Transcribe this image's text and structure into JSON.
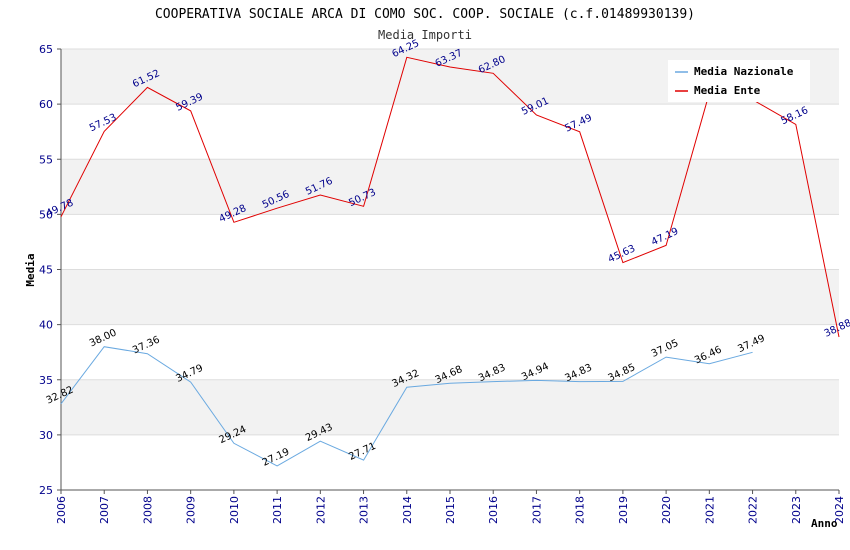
{
  "chart_data": {
    "type": "line",
    "title": "COOPERATIVA SOCIALE ARCA DI COMO SOC. COOP. SOCIALE (c.f.01489930139)",
    "subtitle": "Media Importi",
    "xlabel": "Anno",
    "ylabel": "Media",
    "ylim": [
      25,
      65
    ],
    "yticks": [
      25,
      30,
      35,
      40,
      45,
      50,
      55,
      60,
      65
    ],
    "grid": true,
    "legend_position": "top-right",
    "x": [
      "2006",
      "2007",
      "2008",
      "2009",
      "2010",
      "2011",
      "2012",
      "2013",
      "2014",
      "2015",
      "2016",
      "2017",
      "2018",
      "2019",
      "2020",
      "2021",
      "2022",
      "2023",
      "2024"
    ],
    "series": [
      {
        "name": "Media Nazionale",
        "color": "#6aa9e0",
        "values": [
          32.82,
          38.0,
          37.36,
          34.79,
          29.24,
          27.19,
          29.43,
          27.71,
          34.32,
          34.68,
          34.83,
          34.94,
          34.83,
          34.85,
          37.05,
          36.46,
          37.49,
          null,
          null
        ],
        "labels": [
          "32.82",
          "38.00",
          "37.36",
          "34.79",
          "29.24",
          "27.19",
          "29.43",
          "27.71",
          "34.32",
          "34.68",
          "34.83",
          "34.94",
          "34.83",
          "34.85",
          "37.05",
          "36.46",
          "37.49",
          null,
          null
        ]
      },
      {
        "name": "Media Ente",
        "color": "#e00000",
        "values": [
          49.78,
          57.53,
          61.52,
          59.39,
          49.28,
          50.56,
          51.76,
          50.73,
          64.25,
          63.37,
          62.8,
          59.01,
          57.49,
          45.63,
          47.19,
          61.0,
          60.4,
          58.16,
          38.88
        ],
        "labels": [
          "49.78",
          "57.53",
          "61.52",
          "59.39",
          "49.28",
          "50.56",
          "51.76",
          "50.73",
          "64.25",
          "63.37",
          "62.80",
          "59.01",
          "57.49",
          "45.63",
          "47.19",
          null,
          null,
          "58.16",
          "38.88"
        ]
      }
    ]
  }
}
